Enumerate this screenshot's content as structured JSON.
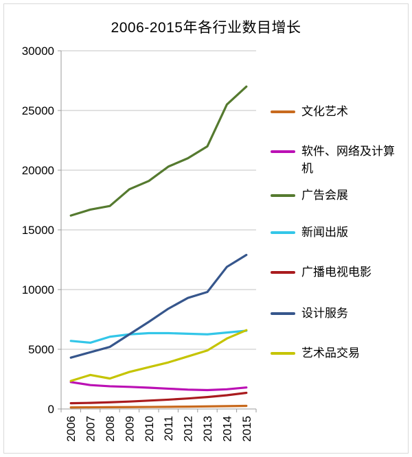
{
  "chart_data": {
    "type": "line",
    "title": "2006-2015年各行业数目增长",
    "categories": [
      "2006",
      "2007",
      "2008",
      "2009",
      "2010",
      "2011",
      "2012",
      "2013",
      "2014",
      "2015"
    ],
    "series": [
      {
        "name": "文化艺术",
        "color": "#c86a1e",
        "values": [
          130,
          140,
          150,
          160,
          170,
          180,
          195,
          215,
          235,
          260
        ]
      },
      {
        "name": "软件、网络及计算机",
        "color": "#bb10b4",
        "values": [
          2250,
          2000,
          1900,
          1850,
          1780,
          1700,
          1620,
          1580,
          1650,
          1800
        ]
      },
      {
        "name": "广告会展",
        "color": "#557a2f",
        "values": [
          16200,
          16700,
          17000,
          18400,
          19100,
          20300,
          21000,
          22000,
          25500,
          27000
        ]
      },
      {
        "name": "新闻出版",
        "color": "#33c6e8",
        "values": [
          5700,
          5550,
          6050,
          6250,
          6350,
          6350,
          6300,
          6250,
          6400,
          6550
        ]
      },
      {
        "name": "广播电视电影",
        "color": "#a91b1e",
        "values": [
          480,
          510,
          560,
          620,
          700,
          780,
          880,
          1000,
          1150,
          1350
        ]
      },
      {
        "name": "设计服务",
        "color": "#36568c",
        "values": [
          4300,
          4750,
          5200,
          6250,
          7300,
          8400,
          9300,
          9800,
          11900,
          12900
        ]
      },
      {
        "name": "艺术品交易",
        "color": "#c5c402",
        "values": [
          2350,
          2850,
          2550,
          3100,
          3500,
          3900,
          4400,
          4900,
          5900,
          6600
        ]
      }
    ],
    "ylim": [
      0,
      30000
    ],
    "ytick_step": 5000,
    "ytick_labels": [
      "0",
      "5000",
      "10000",
      "15000",
      "20000",
      "25000",
      "30000"
    ],
    "grid": "horizontal",
    "legend_position": "right",
    "x_label_rotation": 90,
    "gridline_color": "#c3c3c3",
    "axis_color": "#9b9b9b",
    "text_color": "#000000"
  }
}
